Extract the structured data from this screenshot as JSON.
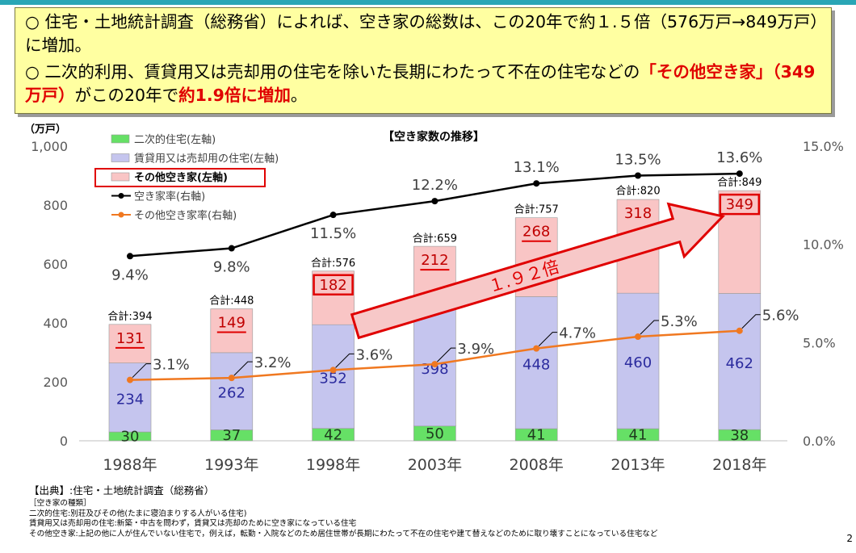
{
  "summary": {
    "line1": "○ 住宅・土地統計調査（総務省）によれば、空き家の総数は、この20年で約１.５倍（576万戸→849万戸）に増加。",
    "line2_a": "○ 二次的利用、賃貸用又は売却用の住宅を除いた長期にわたって不在の住宅などの",
    "line2_red1": "「その他空き家」（349万戸）",
    "line2_b": "がこの20年で",
    "line2_red2": "約1.9倍に増加",
    "line2_c": "。"
  },
  "source_title": "【出典】:住宅・土地統計調査（総務省）",
  "notes": [
    "［空き家の種類］",
    "二次的住宅:別荘及びその他(たまに寝泊まりする人がいる住宅)",
    "賃貸用又は売却用の住宅:新築・中古を問わず，賃貸又は売却のために空き家になっている住宅",
    "その他空き家:上記の他に人が住んでいない住宅で，例えば，転勤・入院などのため居住世帯が長期にわたって不在の住宅や建て替えなどのために取り壊すことになっている住宅など"
  ],
  "page_number": "2",
  "chart_data": {
    "type": "bar",
    "title": "【空き家数の推移】",
    "ylabel": "（万戸）",
    "ylim": [
      0,
      1000
    ],
    "y_ticks": [
      "0",
      "200",
      "400",
      "600",
      "800",
      "1,000"
    ],
    "y2lim": [
      0,
      15
    ],
    "y2_ticks": [
      "0.0%",
      "5.0%",
      "10.0%",
      "15.0%"
    ],
    "categories": [
      "1988年",
      "1993年",
      "1998年",
      "2003年",
      "2008年",
      "2013年",
      "2018年"
    ],
    "total_prefix": "合計:",
    "totals": [
      394,
      448,
      576,
      659,
      757,
      820,
      849
    ],
    "series": [
      {
        "name": "二次的住宅(左軸)",
        "kind": "bar",
        "color": "#66e066",
        "values": [
          30,
          37,
          42,
          50,
          41,
          41,
          38
        ]
      },
      {
        "name": "賃貸用又は売却用の住宅(左軸)",
        "kind": "bar",
        "color": "#c5c5ee",
        "values": [
          234,
          262,
          352,
          398,
          448,
          460,
          462
        ]
      },
      {
        "name": "その他空き家(左軸)",
        "kind": "bar",
        "color": "#f9c5c5",
        "values": [
          131,
          149,
          182,
          212,
          268,
          318,
          349
        ]
      },
      {
        "name": "空き家率(右軸)",
        "kind": "line",
        "color": "#000000",
        "values": [
          9.4,
          9.8,
          11.5,
          12.2,
          13.1,
          13.5,
          13.6
        ],
        "labels": [
          "9.4%",
          "9.8%",
          "11.5%",
          "12.2%",
          "13.1%",
          "13.5%",
          "13.6%"
        ]
      },
      {
        "name": "その他空き家率(右軸)",
        "kind": "line",
        "color": "#f07820",
        "values": [
          3.1,
          3.2,
          3.6,
          3.9,
          4.7,
          5.3,
          5.6
        ],
        "labels": [
          "3.1%",
          "3.2%",
          "3.6%",
          "3.9%",
          "4.7%",
          "5.3%",
          "5.6%"
        ]
      }
    ],
    "growth_annotation": "１.９２倍",
    "colors": {
      "highlight": "#e00000",
      "arrow_fill": "#f7c8c8",
      "arrow_border": "#e00000"
    }
  }
}
